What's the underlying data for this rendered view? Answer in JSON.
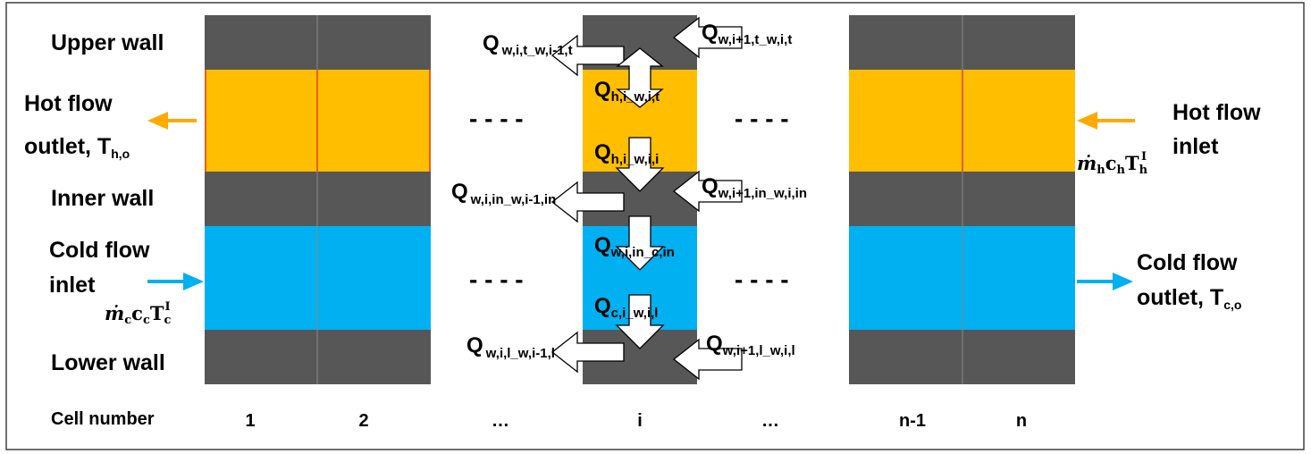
{
  "colors": {
    "wall": "#575757",
    "hot": "#ffbf00",
    "cold": "#00b0f0",
    "hot_arrow": "#ffaa00",
    "cold_arrow": "#00b0f0",
    "frame": "#404040"
  },
  "rows": {
    "upper_wall": "Upper wall",
    "hot_outlet_1": "Hot flow",
    "hot_outlet_2": "outlet, T",
    "hot_outlet_sub": "h,o",
    "inner_wall": "Inner wall",
    "cold_inlet_1": "Cold flow",
    "cold_inlet_2": "inlet",
    "lower_wall": "Lower wall"
  },
  "right_labels": {
    "hot_inlet_1": "Hot flow",
    "hot_inlet_2": "inlet",
    "cold_outlet_1": "Cold flow",
    "cold_outlet_2": "outlet, T",
    "cold_outlet_sub": "c,o"
  },
  "inlet_terms": {
    "hot": {
      "m": "ṁ",
      "m_sub": "h",
      "c": "c",
      "c_sub": "h",
      "T": "T",
      "T_sub": "h",
      "T_sup": "I"
    },
    "cold": {
      "m": "ṁ",
      "m_sub": "c",
      "c": "c",
      "c_sub": "c",
      "T": "T",
      "T_sub": "c",
      "T_sup": "I"
    }
  },
  "cells": {
    "title": "Cell number",
    "labels": [
      "1",
      "2",
      "…",
      "i",
      "…",
      "n-1",
      "n"
    ]
  },
  "dashes": "- - - -",
  "heat_flows": {
    "q": "Q",
    "upper_left": "w,i,t_w,i-1,t",
    "upper_right": "w,i+1,t_w,i,t",
    "hot_top": "h,i_w,i,t",
    "hot_bottom": "h,i_w,i,i",
    "inner_left": "w,i,in_w,i-1,in",
    "inner_right": "w,i+1,in_w,i,in",
    "cold_top": "w,i,in_c,in",
    "cold_bottom": "c,i_w,i,l",
    "lower_left": "w,i,l_w,i-1,l",
    "lower_right": "w,i+1,l_w,i,l"
  }
}
